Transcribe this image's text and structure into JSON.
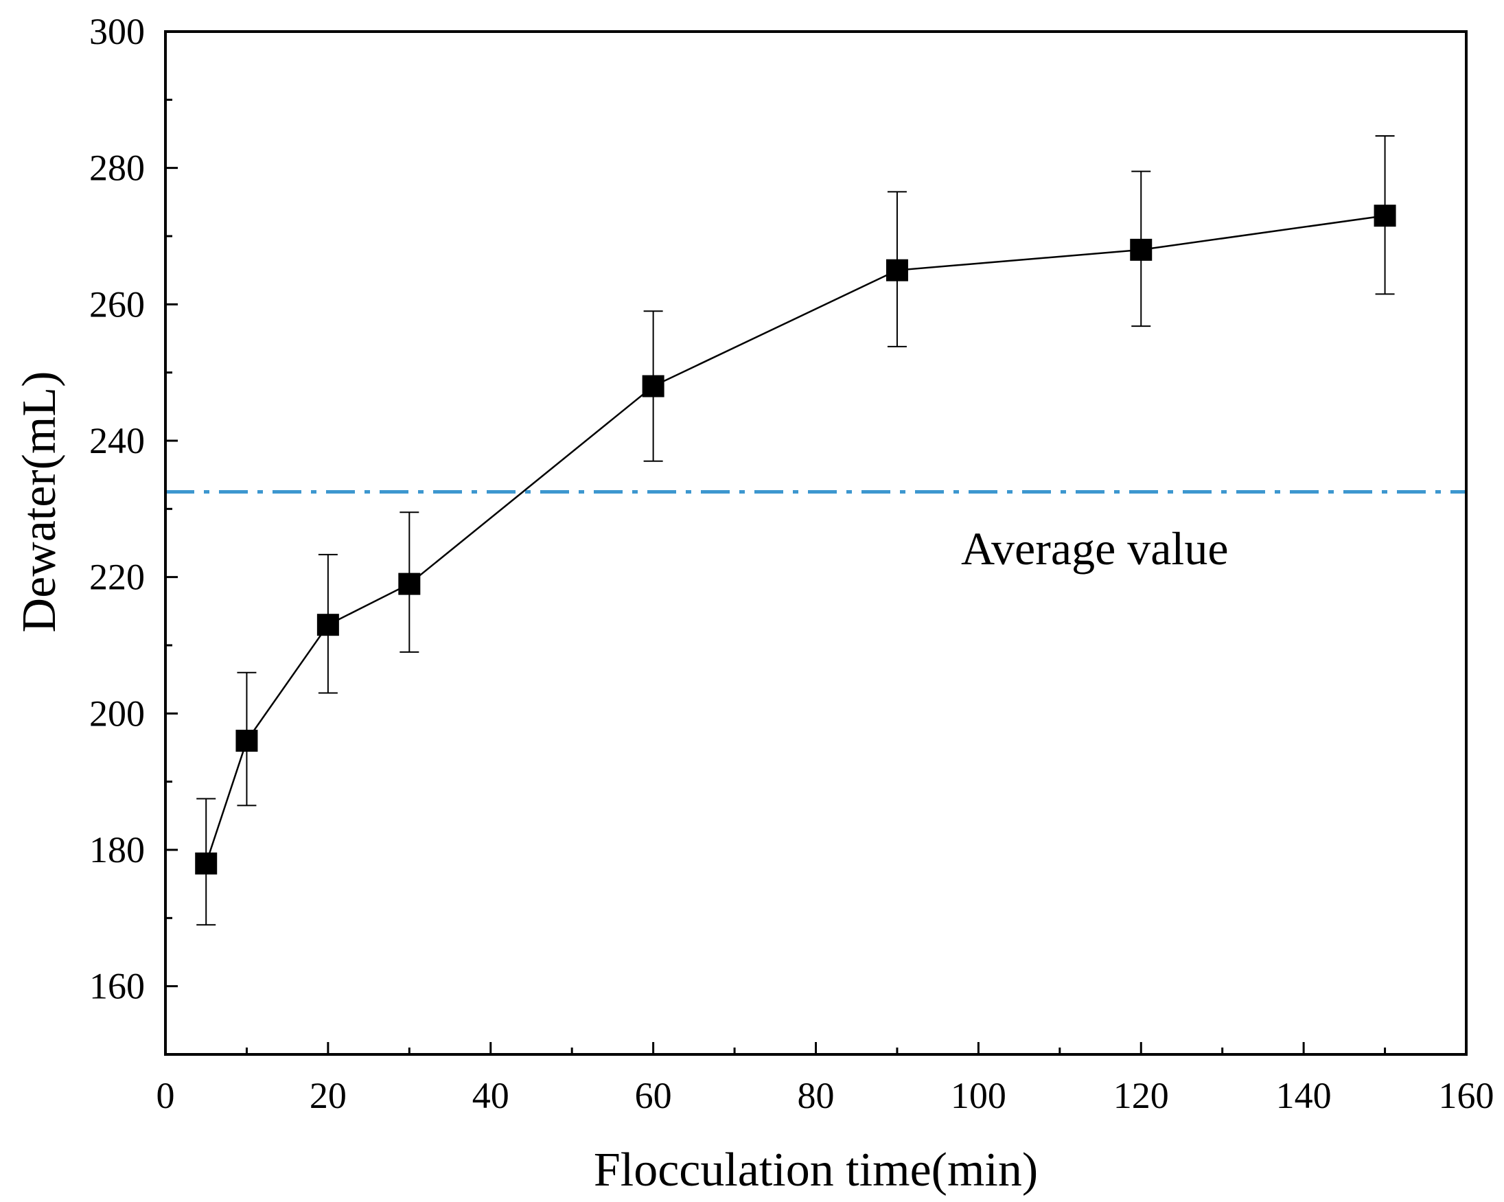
{
  "chart_data": {
    "type": "line",
    "title": "",
    "xlabel": "Flocculation time(min)",
    "ylabel": "Dewater(mL)",
    "xlim": [
      0,
      160
    ],
    "ylim": [
      150,
      300
    ],
    "x_ticks": [
      0,
      20,
      40,
      60,
      80,
      100,
      120,
      140,
      160
    ],
    "y_ticks": [
      160,
      180,
      200,
      220,
      240,
      260,
      280,
      300
    ],
    "grid": false,
    "legend": "none",
    "series": [
      {
        "name": "Dewater",
        "marker": "square",
        "color": "#000000",
        "x": [
          5,
          10,
          20,
          30,
          60,
          90,
          120,
          150
        ],
        "y": [
          178,
          196,
          213,
          219,
          248,
          265,
          268,
          273
        ],
        "error_low": [
          169,
          186.5,
          203,
          209,
          237,
          253.8,
          256.8,
          261.5
        ],
        "error_high": [
          187.5,
          206,
          223.3,
          229.5,
          259,
          276.5,
          279.5,
          284.7
        ]
      }
    ],
    "reference_line": {
      "label": "Average value",
      "y": 232.5,
      "style": "dash-dot",
      "color": "#3d97cf"
    }
  }
}
